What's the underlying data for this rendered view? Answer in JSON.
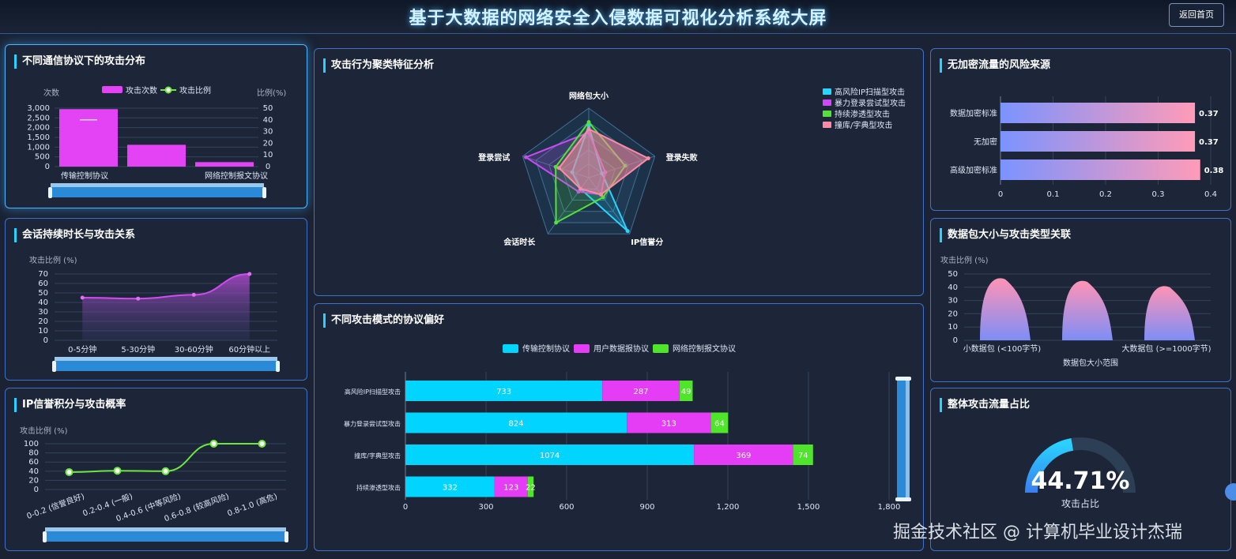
{
  "header": {
    "title": "基于大数据的网络安全入侵数据可视化分析系统大屏",
    "back_label": "返回首页"
  },
  "panel1": {
    "title": "不同通信协议下的攻击分布",
    "y_left_label": "次数",
    "y_right_label": "比例(%)",
    "legend_count": "攻击次数",
    "legend_ratio": "攻击比例",
    "y_left_ticks": [
      "3,000",
      "2,500",
      "2,000",
      "1,500",
      "1,000",
      "500",
      "0"
    ],
    "y_right_ticks": [
      "50",
      "40",
      "30",
      "20",
      "10",
      "0"
    ],
    "categories": [
      "传输控制协议",
      "网络控制报文协议"
    ]
  },
  "panel2": {
    "title": "会话持续时长与攻击关系",
    "y_label": "攻击比例 (%)",
    "y_ticks": [
      "70",
      "60",
      "50",
      "40",
      "30",
      "20",
      "10",
      "0"
    ],
    "categories": [
      "0-5分钟",
      "5-30分钟",
      "30-60分钟",
      "60分钟以上"
    ]
  },
  "panel3": {
    "title": "IP信誉积分与攻击概率",
    "y_label": "攻击比例 (%)",
    "y_ticks": [
      "100",
      "80",
      "60",
      "40",
      "20",
      "0"
    ],
    "categories": [
      "0-0.2 (信誉良好)",
      "0.2-0.4 (一般)",
      "0.4-0.6 (中等风险)",
      "0.6-0.8 (较高风险)",
      "0.8-1.0 (高危)"
    ]
  },
  "panel4": {
    "title": "攻击行为聚类特征分析",
    "axes": [
      "网络包大小",
      "登录失败",
      "IP信誉分",
      "会话时长",
      "登录尝试"
    ],
    "legend": [
      "高风险IP扫描型攻击",
      "暴力登录尝试型攻击",
      "持续渗透型攻击",
      "撞库/字典型攻击"
    ]
  },
  "panel5": {
    "title": "不同攻击模式的协议偏好",
    "legend": [
      "传输控制协议",
      "用户数据报协议",
      "网络控制报文协议"
    ],
    "x_ticks": [
      "0",
      "300",
      "600",
      "900",
      "1,200",
      "1,500",
      "1,800"
    ],
    "rows": [
      {
        "label": "高风险IP扫描型攻击",
        "tcp": "733",
        "udp": "287",
        "icmp": "49"
      },
      {
        "label": "暴力登录尝试型攻击",
        "tcp": "824",
        "udp": "313",
        "icmp": "64"
      },
      {
        "label": "撞库/字典型攻击",
        "tcp": "1074",
        "udp": "369",
        "icmp": "74"
      },
      {
        "label": "持续渗透型攻击",
        "tcp": "332",
        "udp": "123",
        "icmp": "22"
      }
    ]
  },
  "panel6": {
    "title": "无加密流量的风险来源",
    "rows": [
      {
        "label": "数据加密标准",
        "value": "0.37"
      },
      {
        "label": "无加密",
        "value": "0.37"
      },
      {
        "label": "高级加密标准",
        "value": "0.38"
      }
    ],
    "x_ticks": [
      "0",
      "0.1",
      "0.2",
      "0.3",
      "0.4"
    ]
  },
  "panel7": {
    "title": "数据包大小与攻击类型关联",
    "y_label": "攻击比例 (%)",
    "y_ticks": [
      "50",
      "40",
      "30",
      "20",
      "10",
      "0"
    ],
    "x_labels": [
      "小数据包 (<100字节)",
      "大数据包 (>=1000字节)"
    ],
    "x_title": "数据包大小范围"
  },
  "panel8": {
    "title": "整体攻击流量占比",
    "value": "44.71%",
    "label": "攻击占比",
    "percent": 44.71
  },
  "watermark": "掘金技术社区 @ 计算机毕业设计杰瑞",
  "chart_data": [
    {
      "type": "bar",
      "title": "不同通信协议下的攻击分布",
      "categories": [
        "传输控制协议",
        "",
        "网络控制报文协议"
      ],
      "series": [
        {
          "name": "攻击次数",
          "values": [
            2950,
            1120,
            230
          ]
        },
        {
          "name": "攻击比例",
          "values": [
            40,
            null,
            null
          ]
        }
      ],
      "ylabel": "次数",
      "ylim": [
        0,
        3000
      ],
      "y2label": "比例(%)",
      "y2lim": [
        0,
        50
      ]
    },
    {
      "type": "area",
      "title": "会话持续时长与攻击关系",
      "categories": [
        "0-5分钟",
        "5-30分钟",
        "30-60分钟",
        "60分钟以上"
      ],
      "values": [
        45,
        44,
        48,
        70
      ],
      "ylabel": "攻击比例 (%)",
      "ylim": [
        0,
        70
      ]
    },
    {
      "type": "line",
      "title": "IP信誉积分与攻击概率",
      "categories": [
        "0-0.2 (信誉良好)",
        "0.2-0.4 (一般)",
        "0.4-0.6 (中等风险)",
        "0.6-0.8 (较高风险)",
        "0.8-1.0 (高危)"
      ],
      "values": [
        38,
        41,
        40,
        100,
        100
      ],
      "ylabel": "攻击比例 (%)",
      "ylim": [
        0,
        100
      ]
    },
    {
      "type": "radar",
      "title": "攻击行为聚类特征分析",
      "axes": [
        "网络包大小",
        "登录失败",
        "IP信誉分",
        "会话时长",
        "登录尝试"
      ],
      "series": [
        {
          "name": "高风险IP扫描型攻击",
          "values": [
            0.75,
            0.2,
            0.95,
            0.2,
            0.25
          ]
        },
        {
          "name": "暴力登录尝试型攻击",
          "values": [
            0.65,
            0.25,
            0.3,
            0.25,
            0.95
          ]
        },
        {
          "name": "持续渗透型攻击",
          "values": [
            0.8,
            0.55,
            0.35,
            0.8,
            0.5
          ]
        },
        {
          "name": "撞库/字典型攻击",
          "values": [
            0.7,
            0.9,
            0.3,
            0.2,
            0.45
          ]
        }
      ]
    },
    {
      "type": "bar",
      "orientation": "horizontal",
      "stacked": true,
      "title": "不同攻击模式的协议偏好",
      "categories": [
        "高风险IP扫描型攻击",
        "暴力登录尝试型攻击",
        "撞库/字典型攻击",
        "持续渗透型攻击"
      ],
      "series": [
        {
          "name": "传输控制协议",
          "values": [
            733,
            824,
            1074,
            332
          ]
        },
        {
          "name": "用户数据报协议",
          "values": [
            287,
            313,
            369,
            123
          ]
        },
        {
          "name": "网络控制报文协议",
          "values": [
            49,
            64,
            74,
            22
          ]
        }
      ],
      "xlim": [
        0,
        1800
      ]
    },
    {
      "type": "bar",
      "orientation": "horizontal",
      "title": "无加密流量的风险来源",
      "categories": [
        "数据加密标准",
        "无加密",
        "高级加密标准"
      ],
      "values": [
        0.37,
        0.37,
        0.38
      ],
      "xlim": [
        0,
        0.4
      ]
    },
    {
      "type": "bar",
      "title": "数据包大小与攻击类型关联",
      "categories": [
        "小数据包 (<100字节)",
        "",
        "大数据包 (>=1000字节)"
      ],
      "values": [
        46,
        44,
        40
      ],
      "ylabel": "攻击比例 (%)",
      "xlabel": "数据包大小范围",
      "ylim": [
        0,
        50
      ]
    },
    {
      "type": "gauge",
      "title": "整体攻击流量占比",
      "values": [
        44.71
      ]
    }
  ]
}
